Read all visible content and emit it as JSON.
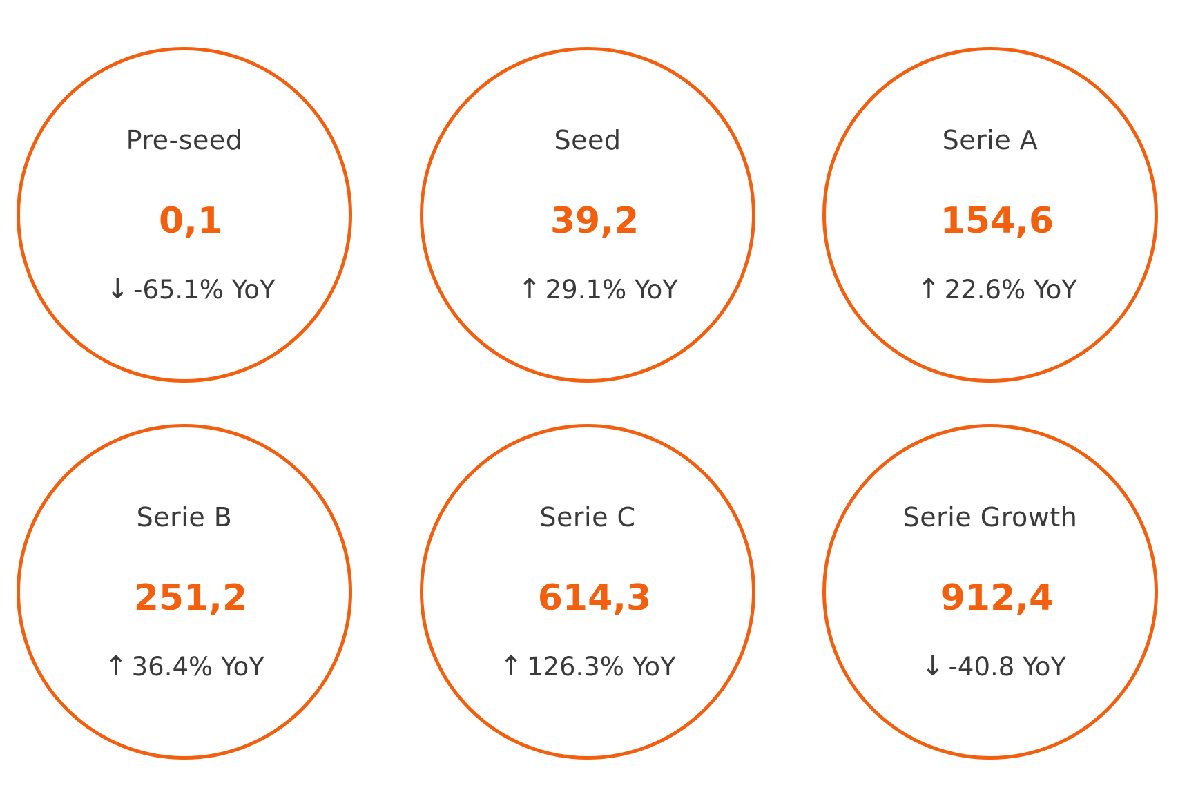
{
  "accent_color": "#f2600f",
  "text_color": "#3a3a3a",
  "stages": [
    {
      "label": "Pre-seed",
      "value": "0,1",
      "direction": "down",
      "arrow": "↓",
      "change": "-65.1% YoY"
    },
    {
      "label": "Seed",
      "value": "39,2",
      "direction": "up",
      "arrow": "↑",
      "change": "29.1% YoY"
    },
    {
      "label": "Serie A",
      "value": "154,6",
      "direction": "up",
      "arrow": "↑",
      "change": "22.6% YoY"
    },
    {
      "label": "Serie B",
      "value": "251,2",
      "direction": "up",
      "arrow": "↑",
      "change": "36.4% YoY"
    },
    {
      "label": "Serie C",
      "value": "614,3",
      "direction": "up",
      "arrow": "↑",
      "change": "126.3% YoY"
    },
    {
      "label": "Serie Growth",
      "value": "912,4",
      "direction": "down",
      "arrow": "↓",
      "change": "-40.8 YoY"
    }
  ]
}
